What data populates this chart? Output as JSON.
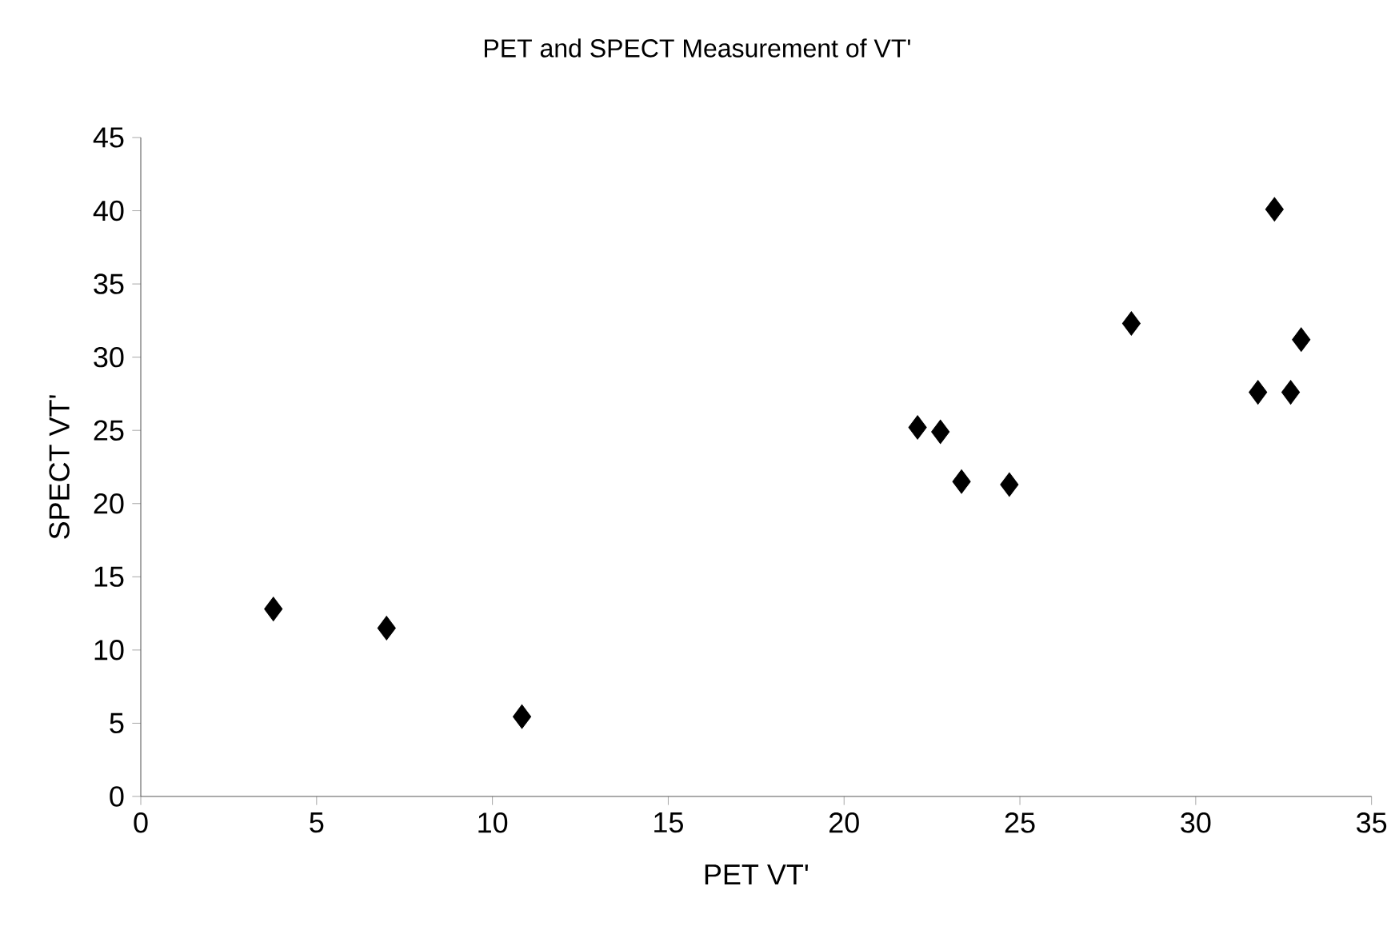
{
  "chart_data": {
    "type": "scatter",
    "title": "PET and SPECT Measurement of VT'",
    "xlabel": "PET VT'",
    "ylabel": "SPECT VT'",
    "x": [
      3.77,
      6.99,
      10.84,
      22.09,
      22.74,
      23.34,
      24.7,
      28.17,
      32.24,
      33.0,
      31.77,
      32.7
    ],
    "values": [
      12.8,
      11.5,
      5.45,
      25.2,
      24.9,
      21.5,
      21.3,
      32.3,
      40.1,
      31.2,
      27.6,
      27.6
    ],
    "color": "#000000",
    "marker": "diamond",
    "xlim": [
      0,
      35
    ],
    "ylim": [
      0,
      45
    ],
    "xticks": [
      0,
      5,
      10,
      15,
      20,
      25,
      30,
      35
    ],
    "yticks": [
      0,
      5,
      10,
      15,
      20,
      25,
      30,
      35,
      40,
      45
    ]
  }
}
